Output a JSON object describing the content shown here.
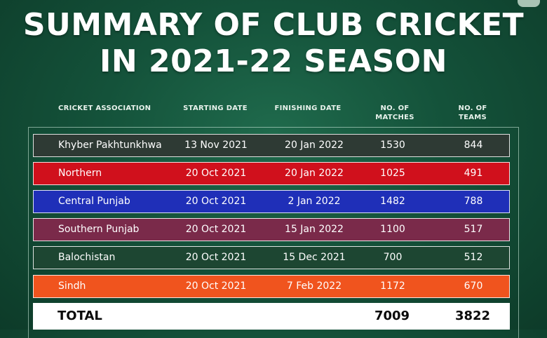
{
  "title_line1": "SUMMARY OF CLUB CRICKET",
  "title_line2": "IN 2021-22 SEASON",
  "headers": {
    "association": "CRICKET ASSOCIATION",
    "start": "STARTING DATE",
    "finish": "FINISHING DATE",
    "matches_l1": "NO. OF",
    "matches_l2": "MATCHES",
    "teams_l1": "NO. OF",
    "teams_l2": "TEAMS"
  },
  "rows": [
    {
      "name": "Khyber Pakhtunkhwa",
      "start": "13 Nov 2021",
      "finish": "20 Jan 2022",
      "matches": "1530",
      "teams": "844",
      "color": "#2e3a34"
    },
    {
      "name": "Northern",
      "start": "20 Oct 2021",
      "finish": "20 Jan 2022",
      "matches": "1025",
      "teams": "491",
      "color": "#d0101c"
    },
    {
      "name": "Central Punjab",
      "start": "20 Oct 2021",
      "finish": "2 Jan 2022",
      "matches": "1482",
      "teams": "788",
      "color": "#1f2fb8"
    },
    {
      "name": "Southern Punjab",
      "start": "20 Oct 2021",
      "finish": "15 Jan 2022",
      "matches": "1100",
      "teams": "517",
      "color": "#7a2a4a"
    },
    {
      "name": "Balochistan",
      "start": "20 Oct 2021",
      "finish": "15 Dec 2021",
      "matches": "700",
      "teams": "512",
      "color": "#1d4632"
    },
    {
      "name": "Sindh",
      "start": "20 Oct 2021",
      "finish": "7 Feb 2022",
      "matches": "1172",
      "teams": "670",
      "color": "#f0541e"
    }
  ],
  "total": {
    "label": "TOTAL",
    "matches": "7009",
    "teams": "3822"
  }
}
